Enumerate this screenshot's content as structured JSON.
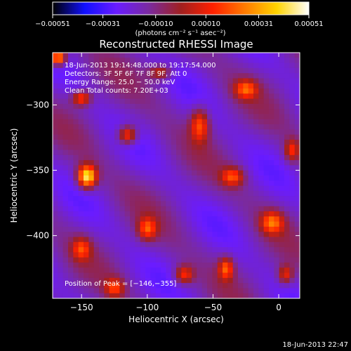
{
  "chart_data": {
    "type": "heatmap",
    "title": "Reconstructed RHESSI Image",
    "xlabel": "Heliocentric X (arcsec)",
    "ylabel": "Heliocentric Y (arcsec)",
    "xlim": [
      -172,
      16
    ],
    "ylim": [
      -448,
      -260
    ],
    "xticks": [
      -150,
      -100,
      -50,
      0
    ],
    "xtick_labels": [
      "−150",
      "−100",
      "−50",
      "0"
    ],
    "yticks": [
      -300,
      -350,
      -400
    ],
    "ytick_labels": [
      "−300",
      "−350",
      "−400"
    ],
    "colorbar": {
      "range": [
        -0.00051,
        0.00051
      ],
      "ticks": [
        -0.00051,
        -0.00031,
        -0.0001,
        0.0001,
        0.00031,
        0.00051
      ],
      "tick_labels": [
        "−0.00051",
        "−0.00031",
        "−0.00010",
        "0.00010",
        "0.00031",
        "0.00051"
      ],
      "unit_label": "(photons cm⁻² s⁻¹ asec⁻²)",
      "colors": [
        "#000000",
        "#1010ff",
        "#6a1cff",
        "#7a2aa0",
        "#a02020",
        "#ff2000",
        "#ff7a00",
        "#ffd400",
        "#ffffff"
      ]
    },
    "annotations": {
      "time_range": "18-Jun-2013 19:14:48.000 to 19:17:54.000",
      "detectors": "Detectors: 3F 5F 6F 7F 8F 9F, Att 0",
      "energy": "Energy Range: 25.0 − 50.0 keV",
      "clean": "Clean    Total counts: 7.20E+03",
      "peak": "Position of Peak = [−146,−355]"
    },
    "peak": {
      "x": -146,
      "y": -355
    },
    "sources": [
      {
        "x": -146,
        "y": -355,
        "amp": 1.0,
        "sx": 5,
        "sy": 6
      },
      {
        "x": -168,
        "y": -264,
        "amp": 0.9,
        "sx": 4,
        "sy": 4
      },
      {
        "x": -150,
        "y": -295,
        "amp": 0.55,
        "sx": 5,
        "sy": 4
      },
      {
        "x": -115,
        "y": -323,
        "amp": 0.6,
        "sx": 5,
        "sy": 5
      },
      {
        "x": -60,
        "y": -315,
        "amp": 0.55,
        "sx": 5,
        "sy": 9
      },
      {
        "x": -25,
        "y": -288,
        "amp": 0.5,
        "sx": 6,
        "sy": 5
      },
      {
        "x": -35,
        "y": -355,
        "amp": 0.5,
        "sx": 6,
        "sy": 5
      },
      {
        "x": -5,
        "y": -390,
        "amp": 0.55,
        "sx": 6,
        "sy": 6
      },
      {
        "x": -100,
        "y": -395,
        "amp": 0.5,
        "sx": 5,
        "sy": 6
      },
      {
        "x": -72,
        "y": -430,
        "amp": 0.5,
        "sx": 5,
        "sy": 5
      },
      {
        "x": -40,
        "y": -425,
        "amp": 0.55,
        "sx": 4,
        "sy": 6
      },
      {
        "x": -150,
        "y": -410,
        "amp": 0.45,
        "sx": 5,
        "sy": 6
      },
      {
        "x": -125,
        "y": -440,
        "amp": 0.45,
        "sx": 5,
        "sy": 5
      },
      {
        "x": 5,
        "y": -430,
        "amp": 0.45,
        "sx": 4,
        "sy": 5
      },
      {
        "x": 10,
        "y": -335,
        "amp": 0.45,
        "sx": 4,
        "sy": 6
      },
      {
        "x": -90,
        "y": -275,
        "amp": 0.4,
        "sx": 6,
        "sy": 4
      }
    ]
  },
  "footer": {
    "timestamp": "18-Jun-2013 22:47"
  }
}
